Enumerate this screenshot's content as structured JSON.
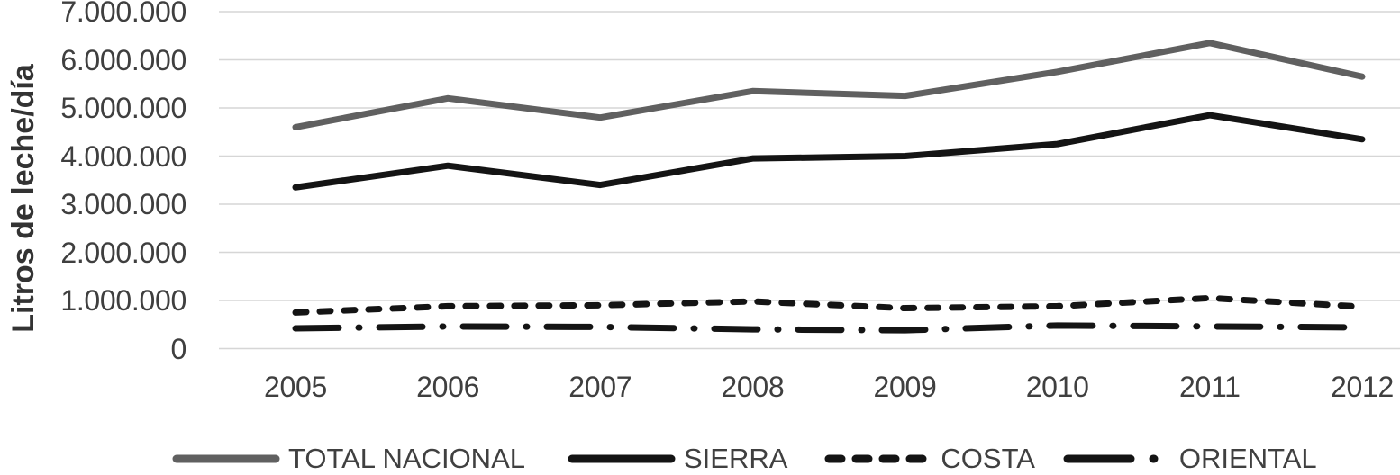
{
  "chart_data": {
    "type": "line",
    "title": "",
    "ylabel": "Litros de leche/día",
    "xlabel": "",
    "categories": [
      "2005",
      "2006",
      "2007",
      "2008",
      "2009",
      "2010",
      "2011",
      "2012"
    ],
    "y_tick_labels": [
      "7.000.000",
      "6.000.000",
      "5.000.000",
      "4.000.000",
      "3.000.000",
      "2.000.000",
      "1.000.000",
      "0"
    ],
    "ylim": [
      0,
      7000000
    ],
    "y_tick_step": 1000000,
    "grid": "horizontal-only",
    "gridline_color": "#d6d6d6",
    "axis_text_color": "#3f3f3f",
    "legend_position": "bottom",
    "series": [
      {
        "name": "TOTAL NACIONAL",
        "color": "#606060",
        "style": "solid",
        "values": [
          4600000,
          5200000,
          4800000,
          5350000,
          5250000,
          5750000,
          6350000,
          5650000
        ]
      },
      {
        "name": "SIERRA",
        "color": "#141414",
        "style": "solid",
        "values": [
          3350000,
          3800000,
          3400000,
          3950000,
          4000000,
          4250000,
          4850000,
          4350000
        ]
      },
      {
        "name": "COSTA",
        "color": "#141414",
        "style": "dashed",
        "values": [
          750000,
          880000,
          900000,
          980000,
          840000,
          880000,
          1050000,
          870000
        ]
      },
      {
        "name": "ORIENTAL",
        "color": "#141414",
        "style": "dash-dot",
        "values": [
          420000,
          460000,
          450000,
          400000,
          380000,
          480000,
          460000,
          440000
        ]
      }
    ]
  }
}
